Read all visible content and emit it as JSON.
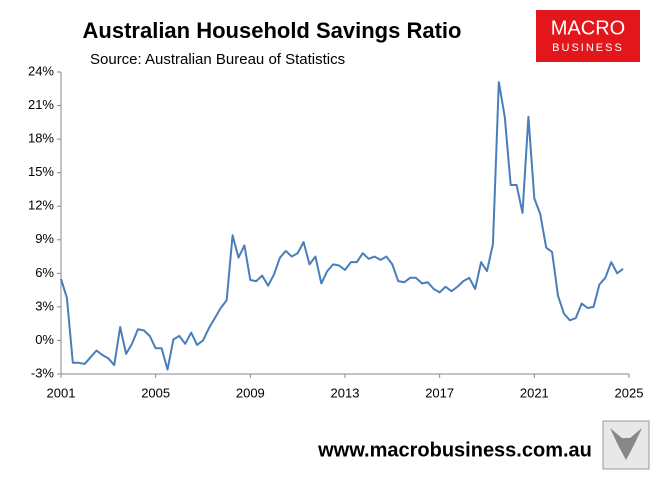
{
  "chart_data": {
    "type": "line",
    "title": "Australian Household Savings Ratio",
    "subtitle": "Source: Australian Bureau of Statistics",
    "logo": {
      "line1": "MACRO",
      "line2": "BUSINESS"
    },
    "footer": "www.macrobusiness.com.au",
    "x": [
      2001,
      2001.25,
      2001.5,
      2001.75,
      2002,
      2002.25,
      2002.5,
      2002.75,
      2003,
      2003.25,
      2003.5,
      2003.75,
      2004,
      2004.25,
      2004.5,
      2004.75,
      2005,
      2005.25,
      2005.5,
      2005.75,
      2006,
      2006.25,
      2006.5,
      2006.75,
      2007,
      2007.25,
      2007.5,
      2007.75,
      2008,
      2008.25,
      2008.5,
      2008.75,
      2009,
      2009.25,
      2009.5,
      2009.75,
      2010,
      2010.25,
      2010.5,
      2010.75,
      2011,
      2011.25,
      2011.5,
      2011.75,
      2012,
      2012.25,
      2012.5,
      2012.75,
      2013,
      2013.25,
      2013.5,
      2013.75,
      2014,
      2014.25,
      2014.5,
      2014.75,
      2015,
      2015.25,
      2015.5,
      2015.75,
      2016,
      2016.25,
      2016.5,
      2016.75,
      2017,
      2017.25,
      2017.5,
      2017.75,
      2018,
      2018.25,
      2018.5,
      2018.75,
      2019,
      2019.25,
      2019.5,
      2019.75,
      2020,
      2020.25,
      2020.5,
      2020.75,
      2021,
      2021.25,
      2021.5,
      2021.75,
      2022,
      2022.25,
      2022.5,
      2022.75,
      2023,
      2023.25,
      2023.5,
      2023.75,
      2024,
      2024.25,
      2024.5,
      2024.75
    ],
    "series": [
      {
        "color": "#4a7ebb",
        "values": [
          5.5,
          3.8,
          -2.0,
          -2.0,
          -2.1,
          -1.5,
          -0.9,
          -1.3,
          -1.6,
          -2.2,
          1.2,
          -1.2,
          -0.3,
          1.0,
          0.9,
          0.4,
          -0.7,
          -0.7,
          -2.6,
          0.1,
          0.4,
          -0.3,
          0.7,
          -0.4,
          0.0,
          1.1,
          2.0,
          2.9,
          3.6,
          9.4,
          7.4,
          8.5,
          5.4,
          5.3,
          5.8,
          4.9,
          5.9,
          7.4,
          8.0,
          7.5,
          7.8,
          8.8,
          6.8,
          7.5,
          5.1,
          6.2,
          6.8,
          6.7,
          6.3,
          7.0,
          7.0,
          7.8,
          7.3,
          7.5,
          7.2,
          7.5,
          6.8,
          5.3,
          5.2,
          5.6,
          5.6,
          5.1,
          5.2,
          4.6,
          4.3,
          4.8,
          4.4,
          4.8,
          5.3,
          5.6,
          4.6,
          7.0,
          6.2,
          8.6,
          23.1,
          20.0,
          13.9,
          13.9,
          11.4,
          20.0,
          12.7,
          11.3,
          8.3,
          7.9,
          4.0,
          2.4,
          1.8,
          2.0,
          3.3,
          2.9,
          3.0,
          5.0,
          5.6,
          7.0,
          6.0,
          6.4
        ]
      }
    ],
    "xlim": [
      2001,
      2025
    ],
    "xticks": [
      2001,
      2005,
      2009,
      2013,
      2017,
      2021,
      2025
    ],
    "ylim": [
      -3,
      24
    ],
    "yticks": [
      {
        "value": -3,
        "label": "-3%"
      },
      {
        "value": 0,
        "label": "0%"
      },
      {
        "value": 3,
        "label": "3%"
      },
      {
        "value": 6,
        "label": "6%"
      },
      {
        "value": 9,
        "label": "9%"
      },
      {
        "value": 12,
        "label": "12%"
      },
      {
        "value": 15,
        "label": "15%"
      },
      {
        "value": 18,
        "label": "18%"
      },
      {
        "value": 21,
        "label": "21%"
      },
      {
        "value": 24,
        "label": "24%"
      }
    ]
  }
}
